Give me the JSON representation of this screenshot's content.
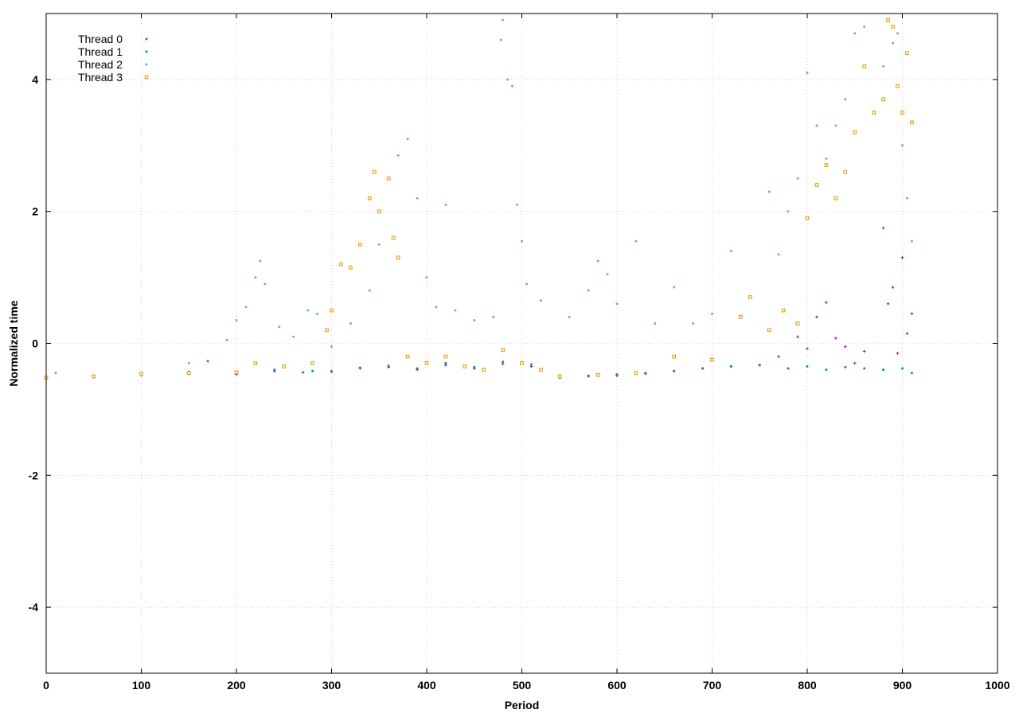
{
  "chart_data": {
    "type": "scatter",
    "title": "",
    "xlabel": "Period",
    "ylabel": "Normalized time",
    "xlim": [
      0,
      1000
    ],
    "ylim": [
      -5,
      5
    ],
    "x_ticks": [
      0,
      100,
      200,
      300,
      400,
      500,
      600,
      700,
      800,
      900,
      1000
    ],
    "y_ticks": [
      -4,
      -2,
      0,
      2,
      4
    ],
    "x_tick_labels": [
      "0",
      "100",
      "200",
      "300",
      "400",
      "500",
      "600",
      "700",
      "800",
      "900",
      "1000"
    ],
    "y_tick_labels": [
      "-4",
      "-2",
      "0",
      "2",
      "4"
    ],
    "grid": true,
    "legend_position": "top-left",
    "series": [
      {
        "name": "Thread 0",
        "color": "#9400d3",
        "marker": "plus",
        "points": [
          [
            0,
            -0.53
          ],
          [
            50,
            -0.51
          ],
          [
            100,
            -0.48
          ],
          [
            150,
            -0.46
          ],
          [
            200,
            -0.47
          ],
          [
            240,
            -0.42
          ],
          [
            270,
            -0.44
          ],
          [
            300,
            -0.42
          ],
          [
            330,
            -0.38
          ],
          [
            360,
            -0.36
          ],
          [
            390,
            -0.4
          ],
          [
            420,
            -0.33
          ],
          [
            450,
            -0.38
          ],
          [
            480,
            -0.31
          ],
          [
            510,
            -0.35
          ],
          [
            540,
            -0.52
          ],
          [
            570,
            -0.5
          ],
          [
            600,
            -0.49
          ],
          [
            630,
            -0.46
          ],
          [
            660,
            -0.42
          ],
          [
            690,
            -0.38
          ],
          [
            720,
            -0.35
          ],
          [
            750,
            -0.33
          ],
          [
            770,
            -0.2
          ],
          [
            790,
            0.1
          ],
          [
            800,
            -0.08
          ],
          [
            810,
            0.4
          ],
          [
            820,
            0.62
          ],
          [
            830,
            0.08
          ],
          [
            840,
            -0.05
          ],
          [
            850,
            -0.3
          ],
          [
            860,
            -0.12
          ],
          [
            880,
            1.75
          ],
          [
            885,
            0.6
          ],
          [
            890,
            0.85
          ],
          [
            895,
            -0.15
          ],
          [
            900,
            1.3
          ],
          [
            905,
            0.15
          ],
          [
            910,
            0.45
          ]
        ]
      },
      {
        "name": "Thread 1",
        "color": "#009e73",
        "marker": "dot",
        "points": [
          [
            0,
            -0.53
          ],
          [
            50,
            -0.5
          ],
          [
            100,
            -0.47
          ],
          [
            150,
            -0.43
          ],
          [
            170,
            -0.27
          ],
          [
            200,
            -0.45
          ],
          [
            240,
            -0.4
          ],
          [
            280,
            -0.42
          ],
          [
            300,
            -0.43
          ],
          [
            330,
            -0.37
          ],
          [
            360,
            -0.34
          ],
          [
            390,
            -0.38
          ],
          [
            420,
            -0.3
          ],
          [
            450,
            -0.36
          ],
          [
            480,
            -0.28
          ],
          [
            510,
            -0.32
          ],
          [
            540,
            -0.51
          ],
          [
            570,
            -0.49
          ],
          [
            600,
            -0.47
          ],
          [
            630,
            -0.45
          ],
          [
            660,
            -0.42
          ],
          [
            690,
            -0.38
          ],
          [
            720,
            -0.35
          ],
          [
            750,
            -0.33
          ],
          [
            780,
            -0.38
          ],
          [
            800,
            -0.35
          ],
          [
            820,
            -0.4
          ],
          [
            840,
            -0.36
          ],
          [
            860,
            -0.38
          ],
          [
            880,
            -0.4
          ],
          [
            900,
            -0.38
          ],
          [
            910,
            -0.45
          ]
        ]
      },
      {
        "name": "Thread 2",
        "color": "#56b4e9",
        "marker": "dot",
        "points": [
          [
            0,
            -0.52
          ],
          [
            10,
            -0.45
          ],
          [
            50,
            -0.5
          ],
          [
            100,
            -0.47
          ],
          [
            150,
            -0.3
          ],
          [
            190,
            0.05
          ],
          [
            200,
            0.35
          ],
          [
            210,
            0.55
          ],
          [
            220,
            1.0
          ],
          [
            225,
            1.25
          ],
          [
            230,
            0.9
          ],
          [
            245,
            0.25
          ],
          [
            260,
            0.1
          ],
          [
            275,
            0.5
          ],
          [
            285,
            0.45
          ],
          [
            300,
            -0.05
          ],
          [
            320,
            0.3
          ],
          [
            340,
            0.8
          ],
          [
            350,
            1.5
          ],
          [
            360,
            2.5
          ],
          [
            370,
            2.85
          ],
          [
            380,
            3.1
          ],
          [
            390,
            2.2
          ],
          [
            400,
            1.0
          ],
          [
            410,
            0.55
          ],
          [
            420,
            2.1
          ],
          [
            430,
            0.5
          ],
          [
            450,
            0.35
          ],
          [
            470,
            0.4
          ],
          [
            478,
            4.6
          ],
          [
            480,
            4.9
          ],
          [
            485,
            4.0
          ],
          [
            490,
            3.9
          ],
          [
            495,
            2.1
          ],
          [
            500,
            1.55
          ],
          [
            505,
            0.9
          ],
          [
            520,
            0.65
          ],
          [
            550,
            0.4
          ],
          [
            570,
            0.8
          ],
          [
            580,
            1.25
          ],
          [
            590,
            1.05
          ],
          [
            600,
            0.6
          ],
          [
            620,
            1.55
          ],
          [
            640,
            0.3
          ],
          [
            660,
            0.85
          ],
          [
            680,
            0.3
          ],
          [
            700,
            0.45
          ],
          [
            720,
            1.4
          ],
          [
            740,
            0.7
          ],
          [
            760,
            2.3
          ],
          [
            770,
            1.35
          ],
          [
            780,
            2.0
          ],
          [
            790,
            2.5
          ],
          [
            800,
            4.1
          ],
          [
            810,
            3.3
          ],
          [
            820,
            2.8
          ],
          [
            830,
            3.3
          ],
          [
            840,
            3.7
          ],
          [
            850,
            4.7
          ],
          [
            860,
            4.8
          ],
          [
            870,
            3.5
          ],
          [
            880,
            4.2
          ],
          [
            890,
            4.55
          ],
          [
            895,
            4.7
          ],
          [
            900,
            3.0
          ],
          [
            905,
            2.2
          ],
          [
            910,
            1.55
          ]
        ]
      },
      {
        "name": "Thread 3",
        "color": "#e69f00",
        "marker": "square",
        "points": [
          [
            0,
            -0.52
          ],
          [
            50,
            -0.5
          ],
          [
            100,
            -0.46
          ],
          [
            150,
            -0.45
          ],
          [
            200,
            -0.44
          ],
          [
            220,
            -0.3
          ],
          [
            250,
            -0.35
          ],
          [
            280,
            -0.3
          ],
          [
            295,
            0.2
          ],
          [
            300,
            0.5
          ],
          [
            310,
            1.2
          ],
          [
            320,
            1.15
          ],
          [
            330,
            1.5
          ],
          [
            340,
            2.2
          ],
          [
            345,
            2.6
          ],
          [
            350,
            2.0
          ],
          [
            360,
            2.5
          ],
          [
            365,
            1.6
          ],
          [
            370,
            1.3
          ],
          [
            380,
            -0.2
          ],
          [
            400,
            -0.3
          ],
          [
            420,
            -0.2
          ],
          [
            440,
            -0.35
          ],
          [
            460,
            -0.4
          ],
          [
            480,
            -0.1
          ],
          [
            500,
            -0.3
          ],
          [
            520,
            -0.4
          ],
          [
            540,
            -0.5
          ],
          [
            580,
            -0.48
          ],
          [
            620,
            -0.45
          ],
          [
            660,
            -0.2
          ],
          [
            700,
            -0.25
          ],
          [
            730,
            0.4
          ],
          [
            740,
            0.7
          ],
          [
            760,
            0.2
          ],
          [
            775,
            0.5
          ],
          [
            790,
            0.3
          ],
          [
            800,
            1.9
          ],
          [
            810,
            2.4
          ],
          [
            820,
            2.7
          ],
          [
            830,
            2.2
          ],
          [
            840,
            2.6
          ],
          [
            850,
            3.2
          ],
          [
            860,
            4.2
          ],
          [
            870,
            3.5
          ],
          [
            880,
            3.7
          ],
          [
            885,
            4.9
          ],
          [
            890,
            4.8
          ],
          [
            895,
            3.9
          ],
          [
            900,
            3.5
          ],
          [
            905,
            4.4
          ],
          [
            910,
            3.35
          ]
        ]
      }
    ]
  }
}
